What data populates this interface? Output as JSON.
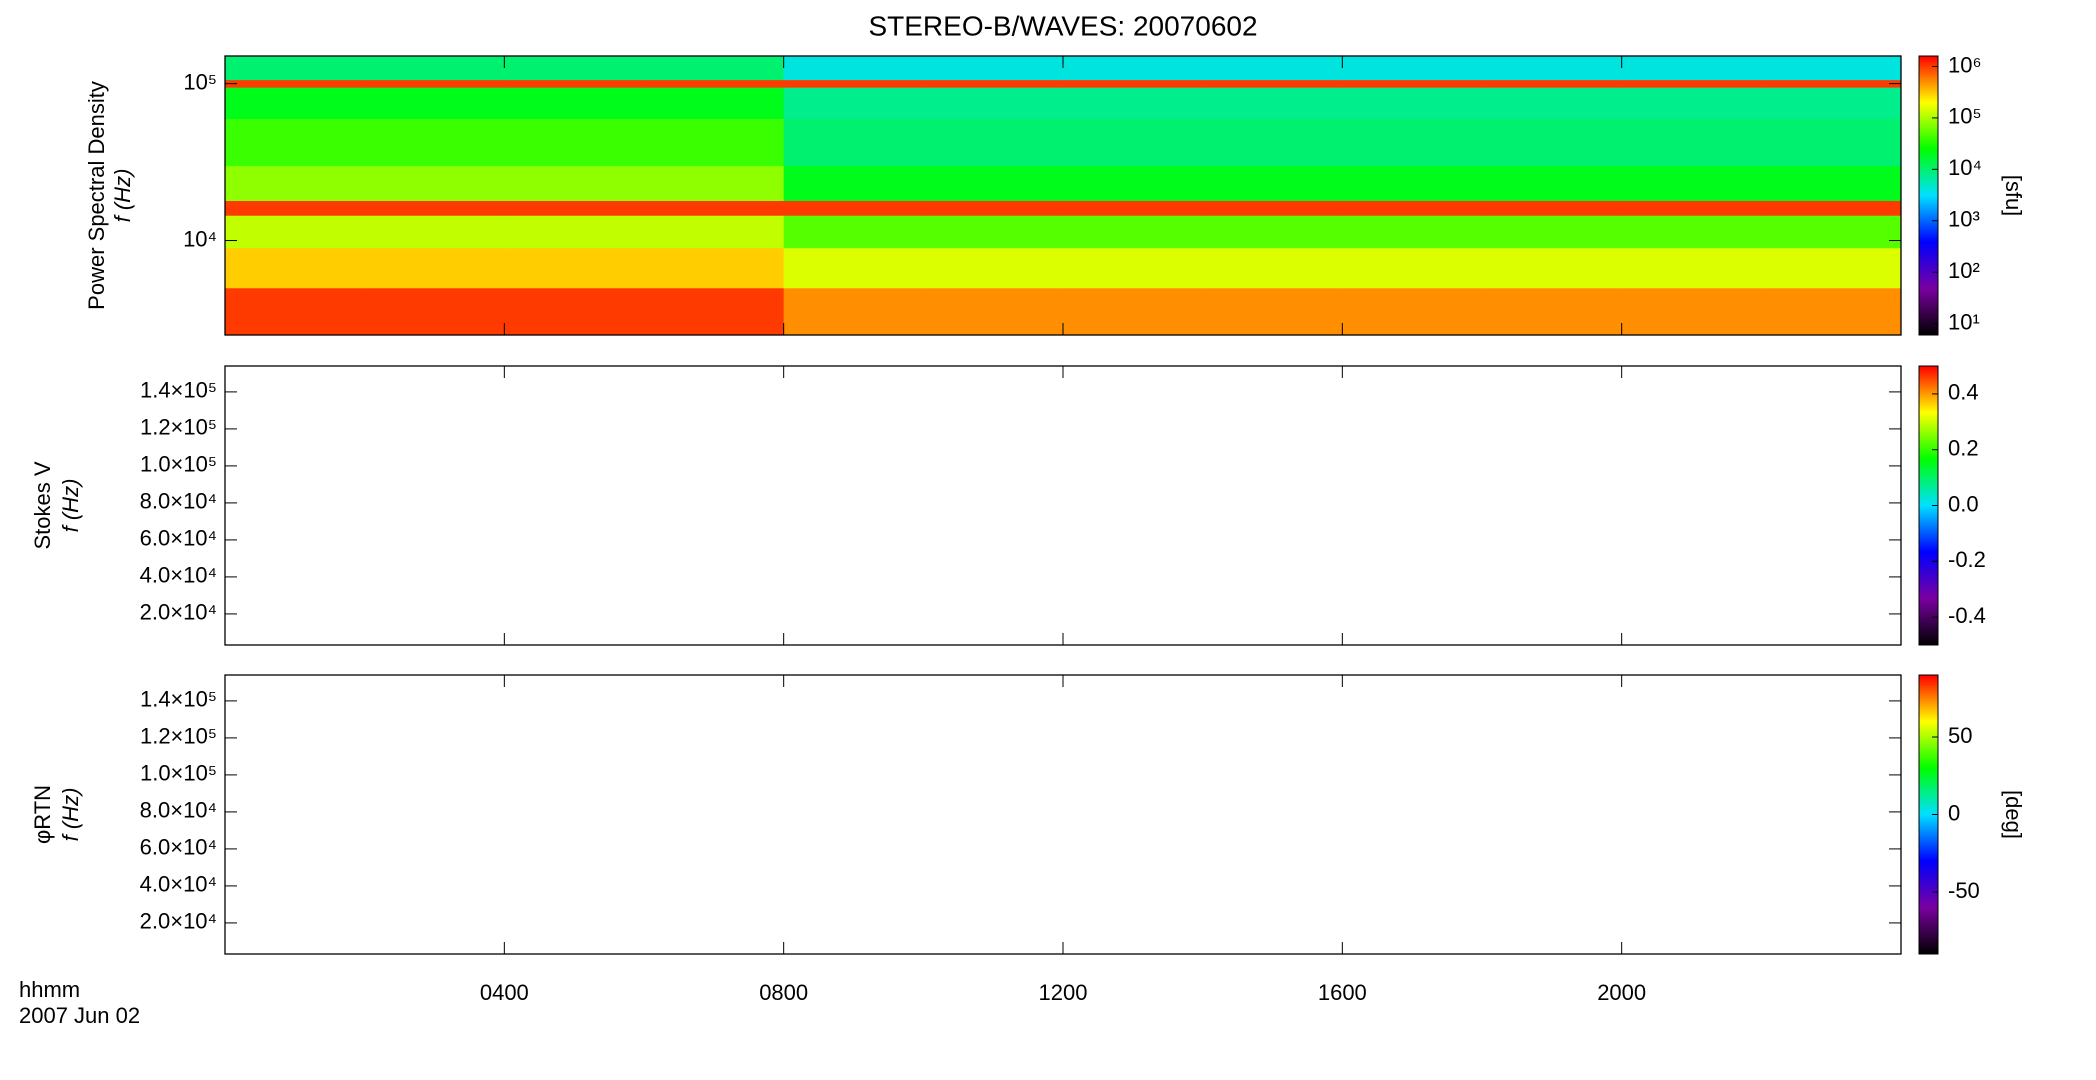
{
  "title": "STEREO-B/WAVES: 20070602",
  "xlabel": [
    "hhmm",
    "2007 Jun 02"
  ],
  "xlim": [
    0,
    24
  ],
  "xticks": [
    {
      "value": 4,
      "label": "0400"
    },
    {
      "value": 8,
      "label": "0800"
    },
    {
      "value": 12,
      "label": "1200"
    },
    {
      "value": 16,
      "label": "1600"
    },
    {
      "value": 20,
      "label": "2000"
    }
  ],
  "chart_data": [
    {
      "type": "heatmap",
      "ylabel": [
        "Power Spectral Density",
        "f (Hz)"
      ],
      "log_y": true,
      "ylim": [
        2500,
        150000
      ],
      "yticks": [
        {
          "value": 10000,
          "label": "10⁴"
        },
        {
          "value": 100000,
          "label": "10⁵"
        }
      ],
      "x_bins": [
        0,
        2,
        4,
        6,
        8,
        10,
        12,
        14,
        16,
        18,
        20,
        22,
        24
      ],
      "y_bins": [
        2500,
        5000,
        9000,
        14500,
        18000,
        30000,
        60000,
        95000,
        106000,
        150000
      ],
      "values": [
        [
          1000000,
          1000000,
          1000000,
          1000000,
          500000,
          500000,
          500000,
          500000,
          500000,
          500000,
          500000,
          500000
        ],
        [
          300000,
          300000,
          300000,
          300000,
          150000,
          150000,
          150000,
          150000,
          150000,
          150000,
          150000,
          150000
        ],
        [
          120000,
          120000,
          120000,
          120000,
          50000,
          50000,
          50000,
          50000,
          50000,
          50000,
          50000,
          50000
        ],
        [
          1000000,
          1000000,
          1000000,
          1000000,
          1000000,
          1000000,
          1000000,
          1000000,
          1000000,
          1000000,
          1000000,
          1000000
        ],
        [
          80000,
          80000,
          80000,
          80000,
          20000,
          20000,
          20000,
          20000,
          20000,
          20000,
          20000,
          20000
        ],
        [
          40000,
          40000,
          40000,
          40000,
          10000,
          10000,
          10000,
          10000,
          10000,
          10000,
          10000,
          10000
        ],
        [
          20000,
          20000,
          20000,
          20000,
          8000,
          8000,
          8000,
          8000,
          8000,
          8000,
          8000,
          8000
        ],
        [
          1000000,
          1000000,
          1000000,
          1000000,
          1000000,
          1000000,
          1000000,
          1000000,
          1000000,
          1000000,
          1000000,
          1000000
        ],
        [
          10000,
          10000,
          10000,
          10000,
          4000,
          4000,
          4000,
          4000,
          4000,
          4000,
          4000,
          4000
        ]
      ],
      "colorbar": {
        "label": "[sfu]",
        "log": true,
        "lim": [
          6,
          1600000
        ],
        "ticks": [
          {
            "value": 10,
            "label": "10¹"
          },
          {
            "value": 100,
            "label": "10²"
          },
          {
            "value": 1000,
            "label": "10³"
          },
          {
            "value": 10000,
            "label": "10⁴"
          },
          {
            "value": 100000,
            "label": "10⁵"
          },
          {
            "value": 1000000,
            "label": "10⁶"
          }
        ],
        "colors": [
          "#000000",
          "#7a00a0",
          "#0000ff",
          "#00e0ff",
          "#00ff00",
          "#ffff00",
          "#ff0000"
        ]
      }
    },
    {
      "type": "heatmap",
      "ylabel": [
        "Stokes V",
        "f (Hz)"
      ],
      "log_y": false,
      "ylim": [
        3200,
        154000
      ],
      "yticks": [
        {
          "value": 20000,
          "label": "2.0×10⁴"
        },
        {
          "value": 40000,
          "label": "4.0×10⁴"
        },
        {
          "value": 60000,
          "label": "6.0×10⁴"
        },
        {
          "value": 80000,
          "label": "8.0×10⁴"
        },
        {
          "value": 100000,
          "label": "1.0×10⁵"
        },
        {
          "value": 120000,
          "label": "1.2×10⁵"
        },
        {
          "value": 140000,
          "label": "1.4×10⁵"
        }
      ],
      "colorbar": {
        "log": false,
        "lim": [
          -0.5,
          0.5
        ],
        "ticks": [
          {
            "value": -0.4,
            "label": "-0.4"
          },
          {
            "value": -0.2,
            "label": "-0.2"
          },
          {
            "value": 0,
            "label": "0.0"
          },
          {
            "value": 0.2,
            "label": "0.2"
          },
          {
            "value": 0.4,
            "label": "0.4"
          }
        ],
        "colors": [
          "#000000",
          "#7a00a0",
          "#0000ff",
          "#00e0ff",
          "#00ff00",
          "#ffff00",
          "#ff0000"
        ]
      }
    },
    {
      "type": "heatmap",
      "ylabel": [
        "φRTN",
        "f (Hz)"
      ],
      "log_y": false,
      "ylim": [
        3200,
        154000
      ],
      "yticks": [
        {
          "value": 20000,
          "label": "2.0×10⁴"
        },
        {
          "value": 40000,
          "label": "4.0×10⁴"
        },
        {
          "value": 60000,
          "label": "6.0×10⁴"
        },
        {
          "value": 80000,
          "label": "8.0×10⁴"
        },
        {
          "value": 100000,
          "label": "1.0×10⁵"
        },
        {
          "value": 120000,
          "label": "1.2×10⁵"
        },
        {
          "value": 140000,
          "label": "1.4×10⁵"
        }
      ],
      "colorbar": {
        "label": "[deg]",
        "log": false,
        "lim": [
          -90,
          90
        ],
        "ticks": [
          -50,
          0,
          50
        ],
        "colors": [
          "#000000",
          "#7a00a0",
          "#0000ff",
          "#00e0ff",
          "#00ff00",
          "#ffff00",
          "#ff0000"
        ]
      }
    }
  ]
}
